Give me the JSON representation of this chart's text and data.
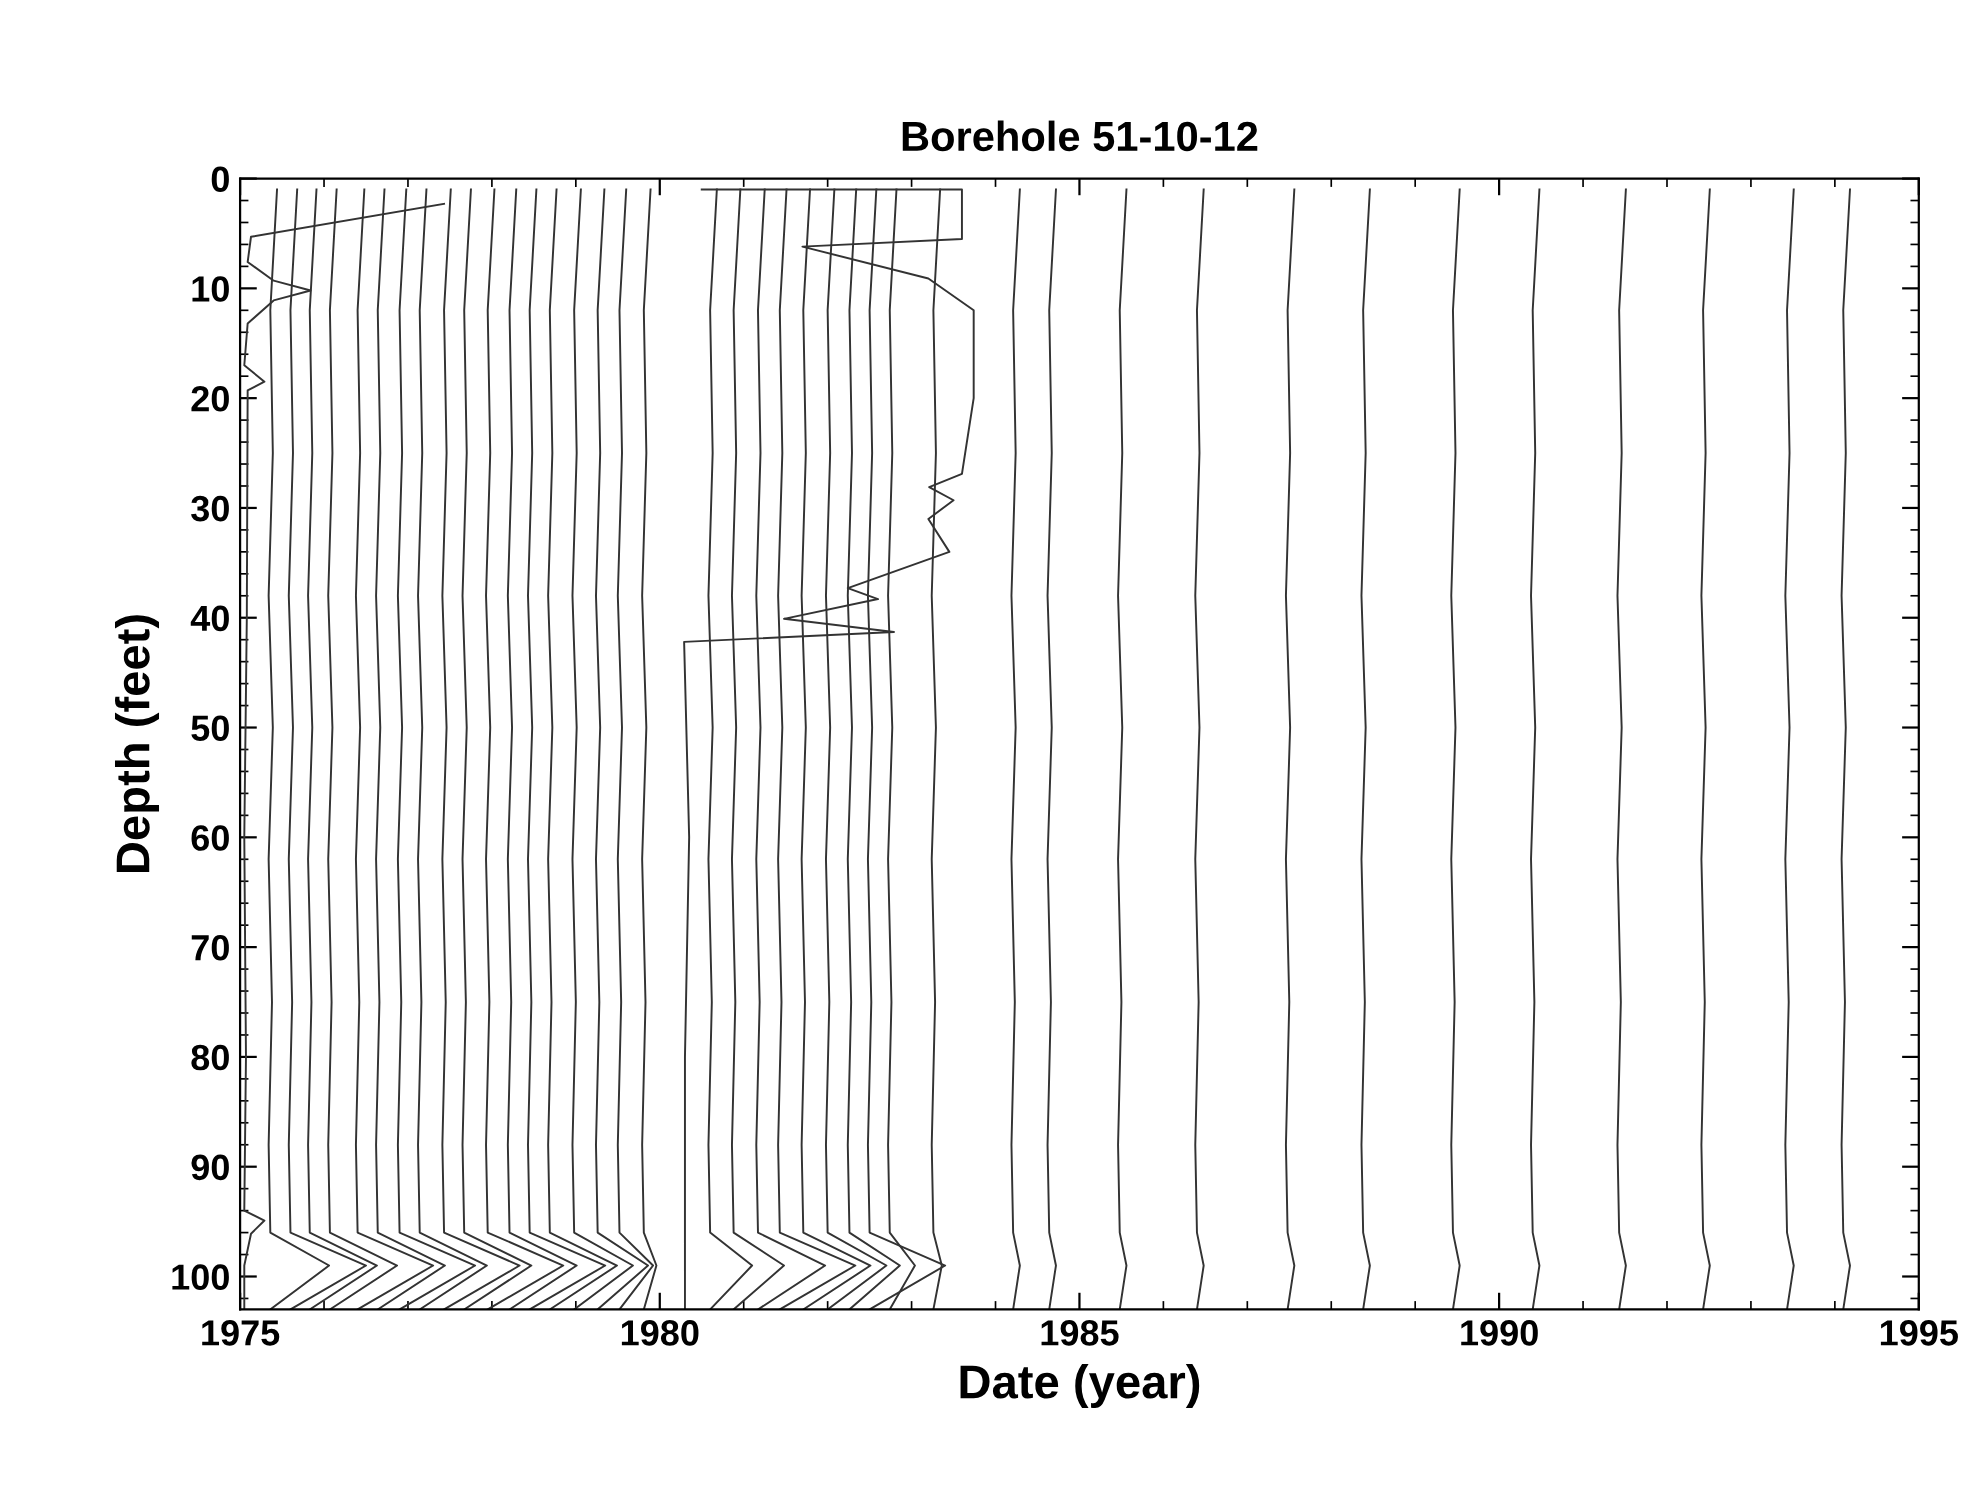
{
  "chart_data": {
    "type": "line",
    "title": "Borehole 51-10-12",
    "xlabel": "Date (year)",
    "ylabel": "Depth (feet)",
    "xlim": [
      1975,
      1995
    ],
    "ylim": [
      103,
      0
    ],
    "xticks": [
      1975,
      {
        "value": 1976,
        "label": null
      },
      {
        "value": 1977,
        "label": null
      },
      {
        "value": 1978,
        "label": null
      },
      {
        "value": 1979,
        "label": null
      },
      1980,
      {
        "value": 1981,
        "label": null
      },
      {
        "value": 1982,
        "label": null
      },
      {
        "value": 1983,
        "label": null
      },
      {
        "value": 1984,
        "label": null
      },
      1985,
      {
        "value": 1986,
        "label": null
      },
      {
        "value": 1987,
        "label": null
      },
      {
        "value": 1988,
        "label": null
      },
      {
        "value": 1989,
        "label": null
      },
      1990,
      {
        "value": 1991,
        "label": null
      },
      {
        "value": 1992,
        "label": null
      },
      {
        "value": 1993,
        "label": null
      },
      {
        "value": 1994,
        "label": null
      },
      1995
    ],
    "yticks": [
      0,
      {
        "value": 2,
        "label": null
      },
      {
        "value": 4,
        "label": null
      },
      {
        "value": 6,
        "label": null
      },
      {
        "value": 8,
        "label": null
      },
      10,
      {
        "value": 12,
        "label": null
      },
      {
        "value": 14,
        "label": null
      },
      {
        "value": 16,
        "label": null
      },
      {
        "value": 18,
        "label": null
      },
      20,
      {
        "value": 22,
        "label": null
      },
      {
        "value": 24,
        "label": null
      },
      {
        "value": 26,
        "label": null
      },
      {
        "value": 28,
        "label": null
      },
      30,
      {
        "value": 32,
        "label": null
      },
      {
        "value": 34,
        "label": null
      },
      {
        "value": 36,
        "label": null
      },
      {
        "value": 38,
        "label": null
      },
      40,
      {
        "value": 42,
        "label": null
      },
      {
        "value": 44,
        "label": null
      },
      {
        "value": 46,
        "label": null
      },
      {
        "value": 48,
        "label": null
      },
      50,
      {
        "value": 52,
        "label": null
      },
      {
        "value": 54,
        "label": null
      },
      {
        "value": 56,
        "label": null
      },
      {
        "value": 58,
        "label": null
      },
      60,
      {
        "value": 62,
        "label": null
      },
      {
        "value": 64,
        "label": null
      },
      {
        "value": 66,
        "label": null
      },
      {
        "value": 68,
        "label": null
      },
      70,
      {
        "value": 72,
        "label": null
      },
      {
        "value": 74,
        "label": null
      },
      {
        "value": 76,
        "label": null
      },
      {
        "value": 78,
        "label": null
      },
      80,
      {
        "value": 82,
        "label": null
      },
      {
        "value": 84,
        "label": null
      },
      {
        "value": 86,
        "label": null
      },
      {
        "value": 88,
        "label": null
      },
      90,
      {
        "value": 92,
        "label": null
      },
      {
        "value": 94,
        "label": null
      },
      {
        "value": 96,
        "label": null
      },
      {
        "value": 98,
        "label": null
      },
      100,
      {
        "value": 102,
        "label": null
      }
    ],
    "grid": false,
    "marker": "none",
    "line_style": "solid",
    "series": [
      {
        "color": "#333333",
        "x": [
          1977.43,
          1975.13,
          1975.09,
          1975.4,
          1975.84,
          1975.4,
          1975.09,
          1975.05,
          1975.29,
          1975.09,
          1975.08,
          1975.05,
          1975.07,
          1975.05,
          1975.29,
          1975.13,
          1975.05,
          1975.05
        ],
        "values": [
          2.3,
          5.3,
          7.6,
          9.3,
          10.2,
          11.1,
          13.2,
          17.0,
          18.5,
          19.3,
          40,
          60,
          80,
          94,
          94.9,
          96.1,
          99,
          103
        ]
      },
      {
        "color": "#333333",
        "x": [
          1975.44,
          1975.36,
          1975.39,
          1975.34,
          1975.39,
          1975.34,
          1975.38,
          1975.34,
          1975.36,
          1976.06,
          1975.36
        ],
        "values": [
          1,
          12,
          25,
          38,
          50,
          62,
          75,
          88,
          96,
          99,
          103
        ]
      },
      {
        "color": "#333333",
        "x": [
          1975.68,
          1975.6,
          1975.63,
          1975.58,
          1975.63,
          1975.58,
          1975.62,
          1975.58,
          1975.6,
          1976.5,
          1975.6
        ],
        "values": [
          1,
          12,
          25,
          38,
          50,
          62,
          75,
          88,
          96,
          99,
          103
        ]
      },
      {
        "color": "#333333",
        "x": [
          1975.91,
          1975.83,
          1975.86,
          1975.81,
          1975.86,
          1975.81,
          1975.85,
          1975.81,
          1975.83,
          1976.63,
          1975.83
        ],
        "values": [
          1,
          12,
          25,
          38,
          50,
          62,
          75,
          88,
          96,
          99,
          103
        ]
      },
      {
        "color": "#333333",
        "x": [
          1976.15,
          1976.07,
          1976.1,
          1976.05,
          1976.1,
          1976.05,
          1976.09,
          1976.05,
          1976.07,
          1976.87,
          1976.07
        ],
        "values": [
          1,
          12,
          25,
          38,
          50,
          62,
          75,
          88,
          96,
          99,
          103
        ]
      },
      {
        "color": "#333333",
        "x": [
          1976.48,
          1976.4,
          1976.43,
          1976.38,
          1976.43,
          1976.38,
          1976.42,
          1976.38,
          1976.4,
          1977.3,
          1976.4
        ],
        "values": [
          1,
          12,
          25,
          38,
          50,
          62,
          75,
          88,
          96,
          99,
          103
        ]
      },
      {
        "color": "#333333",
        "x": [
          1976.72,
          1976.64,
          1976.67,
          1976.62,
          1976.67,
          1976.62,
          1976.66,
          1976.62,
          1976.64,
          1977.44,
          1976.64
        ],
        "values": [
          1,
          12,
          25,
          38,
          50,
          62,
          75,
          88,
          96,
          99,
          103
        ]
      },
      {
        "color": "#333333",
        "x": [
          1976.98,
          1976.9,
          1976.93,
          1976.88,
          1976.93,
          1976.88,
          1976.92,
          1976.88,
          1976.9,
          1977.8,
          1976.9
        ],
        "values": [
          1,
          12,
          25,
          38,
          50,
          62,
          75,
          88,
          96,
          99,
          103
        ]
      },
      {
        "color": "#333333",
        "x": [
          1977.22,
          1977.14,
          1977.17,
          1977.12,
          1977.17,
          1977.12,
          1977.16,
          1977.12,
          1977.14,
          1977.94,
          1977.14
        ],
        "values": [
          1,
          12,
          25,
          38,
          50,
          62,
          75,
          88,
          96,
          99,
          103
        ]
      },
      {
        "color": "#333333",
        "x": [
          1977.51,
          1977.43,
          1977.46,
          1977.41,
          1977.46,
          1977.41,
          1977.45,
          1977.41,
          1977.43,
          1978.33,
          1977.43
        ],
        "values": [
          1,
          12,
          25,
          38,
          50,
          62,
          75,
          88,
          96,
          99,
          103
        ]
      },
      {
        "color": "#333333",
        "x": [
          1977.75,
          1977.67,
          1977.7,
          1977.65,
          1977.7,
          1977.65,
          1977.69,
          1977.65,
          1977.67,
          1978.47,
          1977.67
        ],
        "values": [
          1,
          12,
          25,
          38,
          50,
          62,
          75,
          88,
          96,
          99,
          103
        ]
      },
      {
        "color": "#333333",
        "x": [
          1978.03,
          1977.95,
          1977.98,
          1977.93,
          1977.98,
          1977.93,
          1977.97,
          1977.93,
          1977.95,
          1978.85,
          1977.95
        ],
        "values": [
          1,
          12,
          25,
          38,
          50,
          62,
          75,
          88,
          96,
          99,
          103
        ]
      },
      {
        "color": "#333333",
        "x": [
          1978.29,
          1978.21,
          1978.24,
          1978.19,
          1978.24,
          1978.19,
          1978.23,
          1978.19,
          1978.21,
          1979.01,
          1978.21
        ],
        "values": [
          1,
          12,
          25,
          38,
          50,
          62,
          75,
          88,
          96,
          99,
          103
        ]
      },
      {
        "color": "#333333",
        "x": [
          1978.53,
          1978.45,
          1978.48,
          1978.43,
          1978.48,
          1978.43,
          1978.47,
          1978.43,
          1978.45,
          1979.35,
          1978.45
        ],
        "values": [
          1,
          12,
          25,
          38,
          50,
          62,
          75,
          88,
          96,
          99,
          103
        ]
      },
      {
        "color": "#333333",
        "x": [
          1978.77,
          1978.69,
          1978.72,
          1978.67,
          1978.72,
          1978.67,
          1978.71,
          1978.67,
          1978.69,
          1979.49,
          1978.69
        ],
        "values": [
          1,
          12,
          25,
          38,
          50,
          62,
          75,
          88,
          96,
          99,
          103
        ]
      },
      {
        "color": "#333333",
        "x": [
          1979.06,
          1978.98,
          1979.01,
          1978.96,
          1979.01,
          1978.96,
          1979.0,
          1978.96,
          1978.98,
          1979.68,
          1978.98
        ],
        "values": [
          1,
          12,
          25,
          38,
          50,
          62,
          75,
          88,
          96,
          99,
          103
        ]
      },
      {
        "color": "#333333",
        "x": [
          1979.34,
          1979.26,
          1979.29,
          1979.24,
          1979.29,
          1979.24,
          1979.28,
          1979.24,
          1979.26,
          1979.86,
          1979.26
        ],
        "values": [
          1,
          12,
          25,
          38,
          50,
          62,
          75,
          88,
          96,
          99,
          103
        ]
      },
      {
        "color": "#333333",
        "x": [
          1979.6,
          1979.52,
          1979.55,
          1979.5,
          1979.55,
          1979.5,
          1979.54,
          1979.5,
          1979.52,
          1979.92,
          1979.52
        ],
        "values": [
          1,
          12,
          25,
          38,
          50,
          62,
          75,
          88,
          96,
          99,
          103
        ]
      },
      {
        "color": "#333333",
        "x": [
          1979.89,
          1979.81,
          1979.84,
          1979.79,
          1979.84,
          1979.79,
          1979.83,
          1979.79,
          1979.81,
          1979.96,
          1979.81
        ],
        "values": [
          1,
          12,
          25,
          38,
          50,
          62,
          75,
          88,
          96,
          99,
          103
        ]
      },
      {
        "color": "#333333",
        "x": [
          1980.5,
          1983.6,
          1983.6,
          1981.7,
          1983.2,
          1983.74,
          1983.74,
          1983.6,
          1983.21,
          1983.5,
          1983.2,
          1983.45,
          1982.24,
          1982.6,
          1981.48,
          1982.79,
          1980.29,
          1980.35,
          1980.3,
          1980.3,
          1980.3
        ],
        "values": [
          1.0,
          1.0,
          5.5,
          6.2,
          9.1,
          12.0,
          20,
          26.9,
          28.1,
          29.3,
          31,
          34,
          37.3,
          38.3,
          40.1,
          41.3,
          42.2,
          60,
          80,
          97,
          103
        ]
      },
      {
        "color": "#333333",
        "x": [
          1980.68,
          1980.6,
          1980.63,
          1980.58,
          1980.63,
          1980.58,
          1980.62,
          1980.58,
          1980.6,
          1981.1,
          1980.6
        ],
        "values": [
          1,
          12,
          25,
          38,
          50,
          62,
          75,
          88,
          96,
          99,
          103
        ]
      },
      {
        "color": "#333333",
        "x": [
          1980.96,
          1980.88,
          1980.91,
          1980.86,
          1980.91,
          1980.86,
          1980.9,
          1980.86,
          1980.88,
          1981.48,
          1980.88
        ],
        "values": [
          1,
          12,
          25,
          38,
          50,
          62,
          75,
          88,
          96,
          99,
          103
        ]
      },
      {
        "color": "#333333",
        "x": [
          1981.25,
          1981.17,
          1981.2,
          1981.15,
          1981.2,
          1981.15,
          1981.19,
          1981.15,
          1981.17,
          1981.97,
          1981.17
        ],
        "values": [
          1,
          12,
          25,
          38,
          50,
          62,
          75,
          88,
          96,
          99,
          103
        ]
      },
      {
        "color": "#333333",
        "x": [
          1981.51,
          1981.43,
          1981.46,
          1981.41,
          1981.46,
          1981.41,
          1981.45,
          1981.41,
          1981.43,
          1982.33,
          1981.43
        ],
        "values": [
          1,
          12,
          25,
          38,
          50,
          62,
          75,
          88,
          96,
          99,
          103
        ]
      },
      {
        "color": "#333333",
        "x": [
          1981.79,
          1981.71,
          1981.74,
          1981.69,
          1981.74,
          1981.69,
          1981.73,
          1981.69,
          1981.71,
          1982.51,
          1981.71
        ],
        "values": [
          1,
          12,
          25,
          38,
          50,
          62,
          75,
          88,
          96,
          99,
          103
        ]
      },
      {
        "color": "#333333",
        "x": [
          1982.08,
          1982.0,
          1982.03,
          1981.98,
          1982.03,
          1981.98,
          1982.02,
          1981.98,
          1982.0,
          1982.7,
          1982.0
        ],
        "values": [
          1,
          12,
          25,
          38,
          50,
          62,
          75,
          88,
          96,
          99,
          103
        ]
      },
      {
        "color": "#333333",
        "x": [
          1982.34,
          1982.26,
          1982.29,
          1982.24,
          1982.29,
          1982.24,
          1982.28,
          1982.24,
          1982.26,
          1982.86,
          1982.26
        ],
        "values": [
          1,
          12,
          25,
          38,
          50,
          62,
          75,
          88,
          96,
          99,
          103
        ]
      },
      {
        "color": "#333333",
        "x": [
          1982.58,
          1982.5,
          1982.53,
          1982.48,
          1982.53,
          1982.48,
          1982.52,
          1982.48,
          1982.5,
          1983.4,
          1982.5
        ],
        "values": [
          1,
          12,
          25,
          38,
          50,
          62,
          75,
          88,
          96,
          99,
          103
        ]
      },
      {
        "color": "#333333",
        "x": [
          1982.82,
          1982.74,
          1982.77,
          1982.72,
          1982.77,
          1982.72,
          1982.76,
          1982.72,
          1982.74,
          1983.04,
          1982.74
        ],
        "values": [
          1,
          12,
          25,
          38,
          50,
          62,
          75,
          88,
          96,
          99,
          103
        ]
      },
      {
        "color": "#333333",
        "x": [
          1983.34,
          1983.26,
          1983.29,
          1983.24,
          1983.29,
          1983.24,
          1983.28,
          1983.24,
          1983.26,
          1983.36,
          1983.26
        ],
        "values": [
          1,
          12,
          25,
          38,
          50,
          62,
          75,
          88,
          96,
          99,
          103
        ]
      },
      {
        "color": "#333333",
        "x": [
          1984.29,
          1984.21,
          1984.24,
          1984.19,
          1984.24,
          1984.19,
          1984.23,
          1984.19,
          1984.21,
          1984.29,
          1984.21
        ],
        "values": [
          1,
          12,
          25,
          38,
          50,
          62,
          75,
          88,
          96,
          99,
          103
        ]
      },
      {
        "color": "#333333",
        "x": [
          1984.72,
          1984.64,
          1984.67,
          1984.62,
          1984.67,
          1984.62,
          1984.66,
          1984.62,
          1984.64,
          1984.72,
          1984.64
        ],
        "values": [
          1,
          12,
          25,
          38,
          50,
          62,
          75,
          88,
          96,
          99,
          103
        ]
      },
      {
        "color": "#333333",
        "x": [
          1985.56,
          1985.48,
          1985.51,
          1985.46,
          1985.51,
          1985.46,
          1985.5,
          1985.46,
          1985.48,
          1985.56,
          1985.48
        ],
        "values": [
          1,
          12,
          25,
          38,
          50,
          62,
          75,
          88,
          96,
          99,
          103
        ]
      },
      {
        "color": "#333333",
        "x": [
          1986.48,
          1986.4,
          1986.43,
          1986.38,
          1986.43,
          1986.38,
          1986.42,
          1986.38,
          1986.4,
          1986.48,
          1986.4
        ],
        "values": [
          1,
          12,
          25,
          38,
          50,
          62,
          75,
          88,
          96,
          99,
          103
        ]
      },
      {
        "color": "#333333",
        "x": [
          1987.56,
          1987.48,
          1987.51,
          1987.46,
          1987.51,
          1987.46,
          1987.5,
          1987.46,
          1987.48,
          1987.56,
          1987.48
        ],
        "values": [
          1,
          12,
          25,
          38,
          50,
          62,
          75,
          88,
          96,
          99,
          103
        ]
      },
      {
        "color": "#333333",
        "x": [
          1988.46,
          1988.38,
          1988.41,
          1988.36,
          1988.41,
          1988.36,
          1988.4,
          1988.36,
          1988.38,
          1988.46,
          1988.38
        ],
        "values": [
          1,
          12,
          25,
          38,
          50,
          62,
          75,
          88,
          96,
          99,
          103
        ]
      },
      {
        "color": "#333333",
        "x": [
          1989.53,
          1989.45,
          1989.48,
          1989.43,
          1989.48,
          1989.43,
          1989.47,
          1989.43,
          1989.45,
          1989.53,
          1989.45
        ],
        "values": [
          1,
          12,
          25,
          38,
          50,
          62,
          75,
          88,
          96,
          99,
          103
        ]
      },
      {
        "color": "#333333",
        "x": [
          1990.48,
          1990.4,
          1990.43,
          1990.38,
          1990.43,
          1990.38,
          1990.42,
          1990.38,
          1990.4,
          1990.48,
          1990.4
        ],
        "values": [
          1,
          12,
          25,
          38,
          50,
          62,
          75,
          88,
          96,
          99,
          103
        ]
      },
      {
        "color": "#333333",
        "x": [
          1991.51,
          1991.43,
          1991.46,
          1991.41,
          1991.46,
          1991.41,
          1991.45,
          1991.41,
          1991.43,
          1991.51,
          1991.43
        ],
        "values": [
          1,
          12,
          25,
          38,
          50,
          62,
          75,
          88,
          96,
          99,
          103
        ]
      },
      {
        "color": "#333333",
        "x": [
          1992.51,
          1992.43,
          1992.46,
          1992.41,
          1992.46,
          1992.41,
          1992.45,
          1992.41,
          1992.43,
          1992.51,
          1992.43
        ],
        "values": [
          1,
          12,
          25,
          38,
          50,
          62,
          75,
          88,
          96,
          99,
          103
        ]
      },
      {
        "color": "#333333",
        "x": [
          1993.51,
          1993.43,
          1993.46,
          1993.41,
          1993.46,
          1993.41,
          1993.45,
          1993.41,
          1993.43,
          1993.51,
          1993.43
        ],
        "values": [
          1,
          12,
          25,
          38,
          50,
          62,
          75,
          88,
          96,
          99,
          103
        ]
      },
      {
        "color": "#333333",
        "x": [
          1994.18,
          1994.1,
          1994.13,
          1994.08,
          1994.13,
          1994.08,
          1994.12,
          1994.08,
          1994.1,
          1994.18,
          1994.1
        ],
        "values": [
          1,
          12,
          25,
          38,
          50,
          62,
          75,
          88,
          96,
          99,
          103
        ]
      }
    ]
  }
}
